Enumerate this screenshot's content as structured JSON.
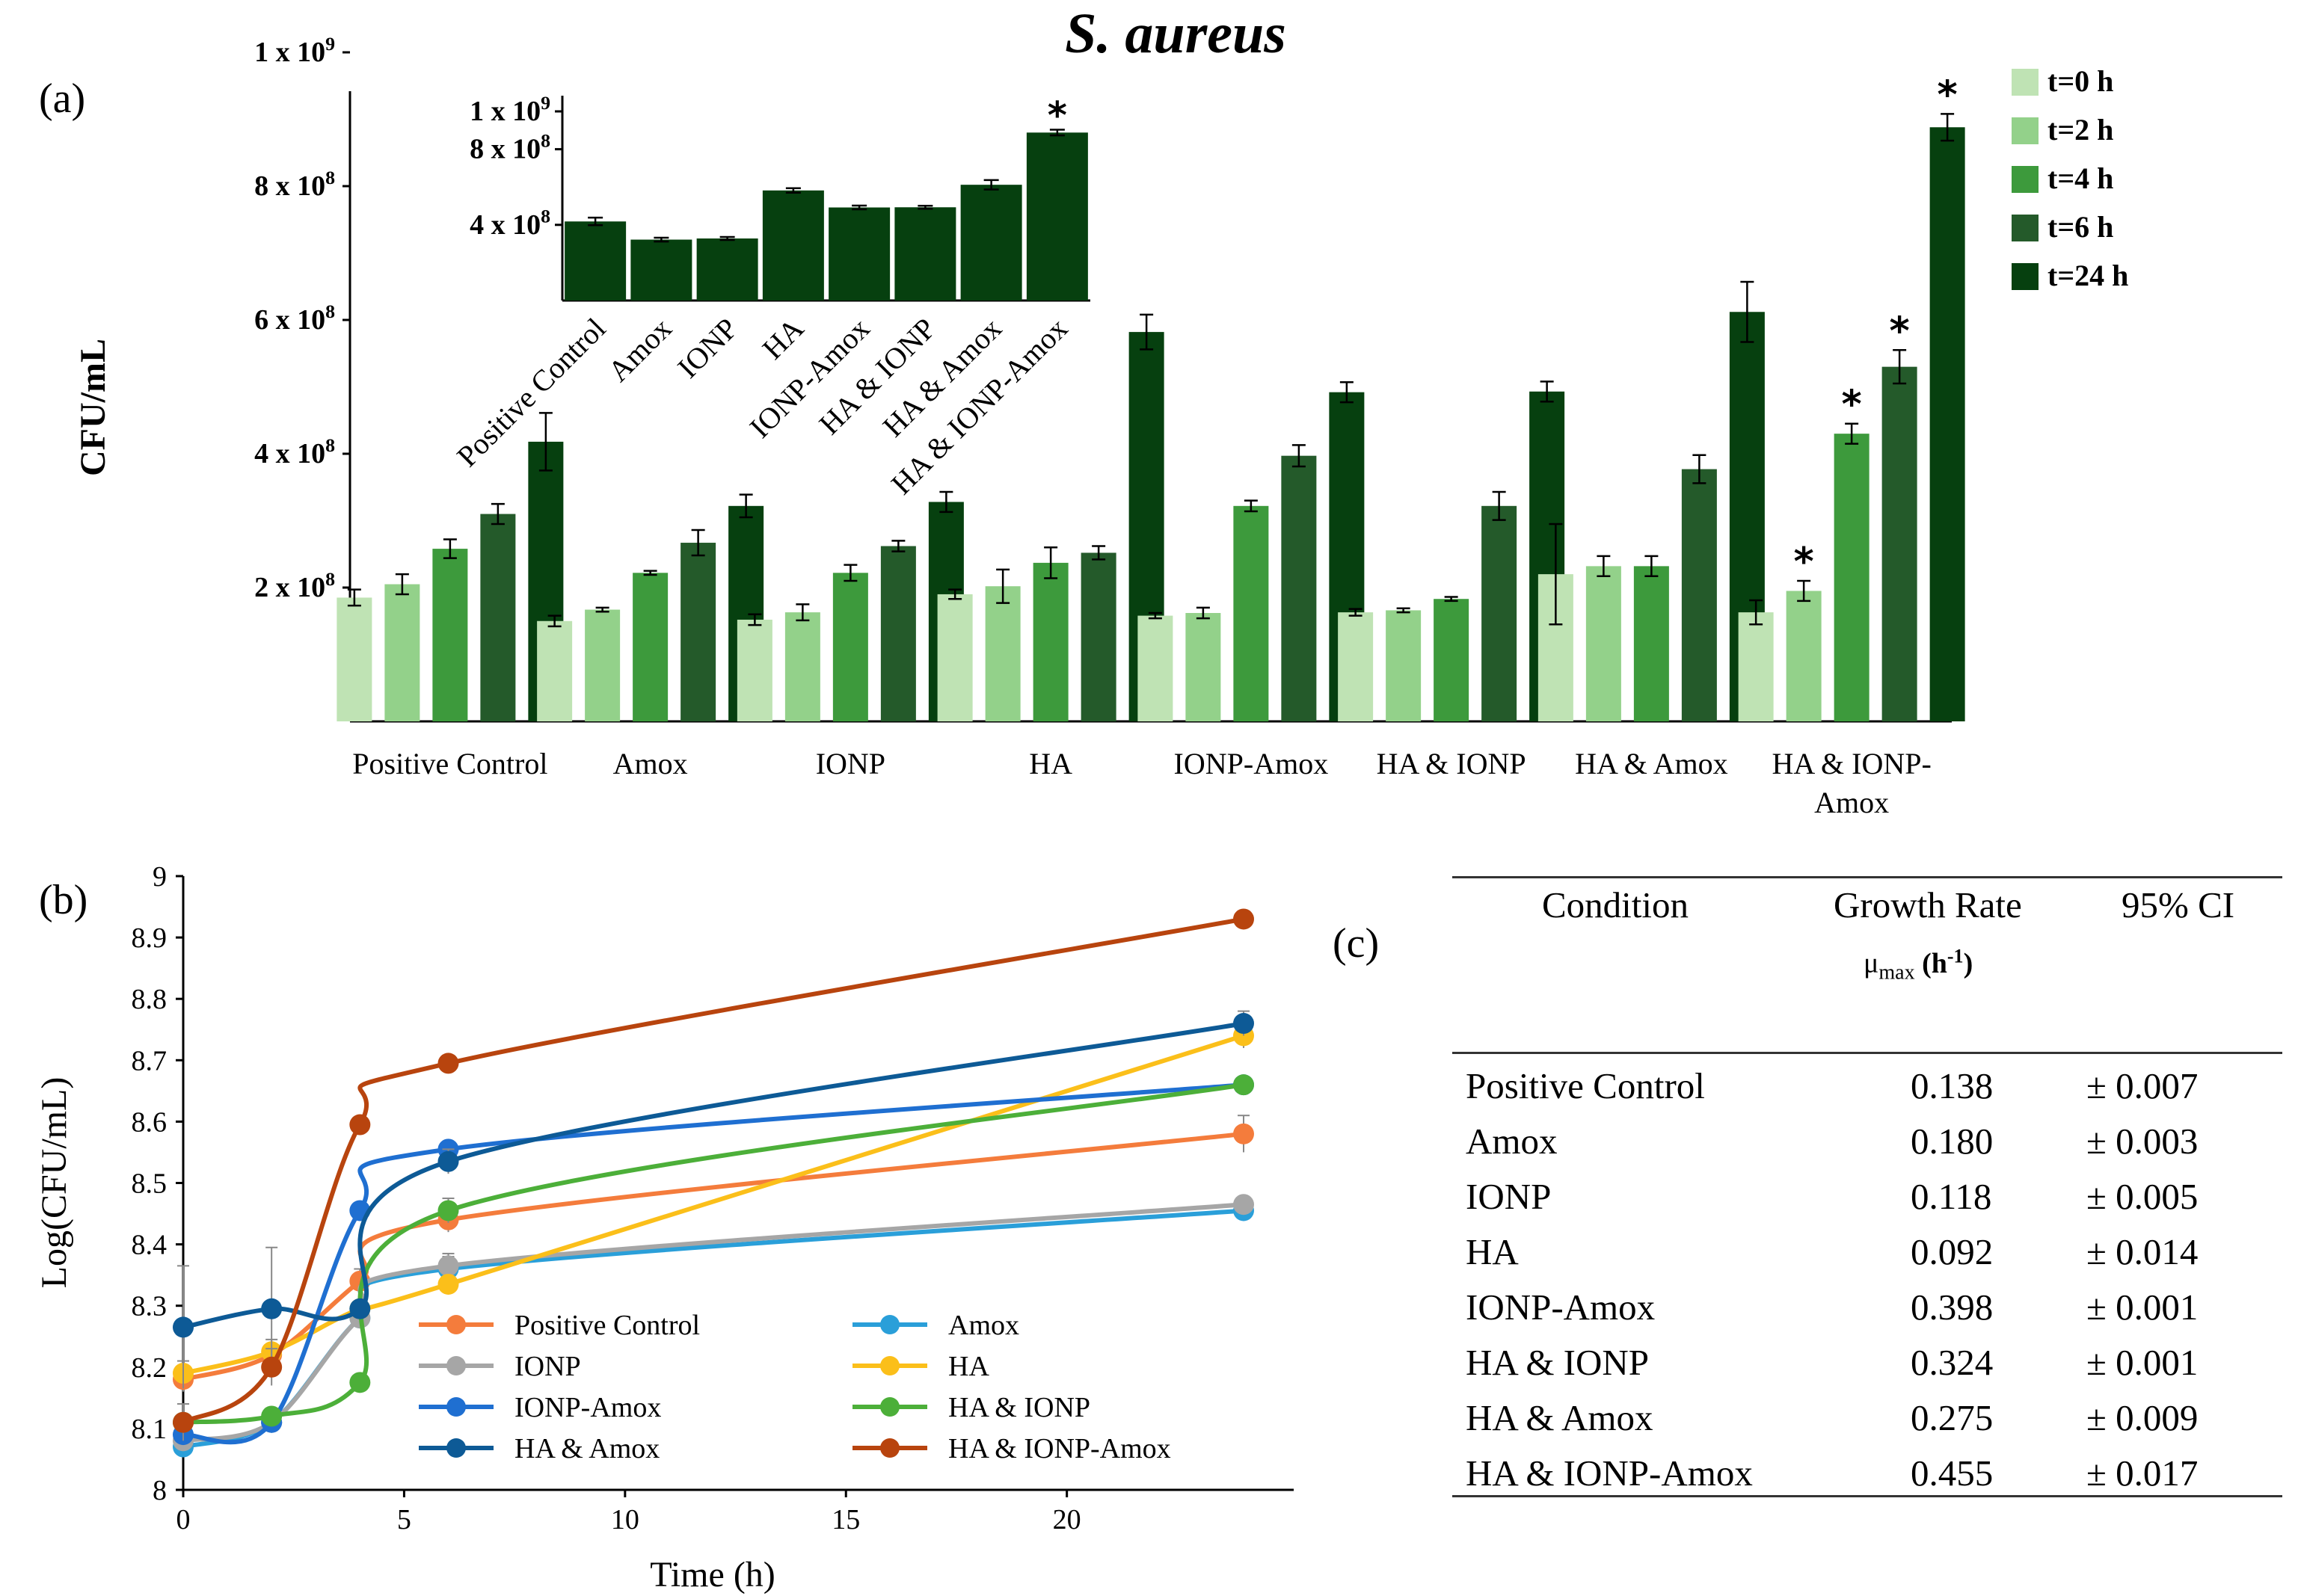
{
  "figure_title": "S. aureus",
  "panel_labels": {
    "a": "(a)",
    "b": "(b)",
    "c": "(c)"
  },
  "colors": {
    "t0": "#bfe3b4",
    "t2": "#93d18a",
    "t4": "#3d9a3c",
    "t6": "#245a2a",
    "t24": "#06400f",
    "inset": "#06400f",
    "series": {
      "Positive Control": "#f47c3c",
      "Amox": "#2a9fd9",
      "IONP": "#a6a6a6",
      "HA": "#fbbf1a",
      "IONP-Amox": "#1f6fd1",
      "HA & IONP": "#4caf39",
      "HA & Amox": "#0d5a96",
      "HA & IONP-Amox": "#b8440e"
    }
  },
  "chart_data": [
    {
      "type": "bar",
      "title": "S. aureus",
      "ylabel": "CFU/mL",
      "xlabel": "",
      "ylim": [
        0,
        1000000000
      ],
      "yticks": [
        200000000,
        400000000,
        600000000,
        800000000,
        1000000000
      ],
      "ytick_labels": [
        {
          "base": "2 x 10",
          "exp": "8"
        },
        {
          "base": "4 x 10",
          "exp": "8"
        },
        {
          "base": "6 x 10",
          "exp": "8"
        },
        {
          "base": "8 x 10",
          "exp": "8"
        },
        {
          "base": "1 x 10",
          "exp": "9"
        }
      ],
      "categories": [
        "Positive Control",
        "Amox",
        "IONP",
        "HA",
        "IONP-Amox",
        "HA & IONP",
        "HA & Amox",
        "HA & IONP-Amox"
      ],
      "category_labels": [
        [
          "Positive Control"
        ],
        [
          "Amox"
        ],
        [
          "IONP"
        ],
        [
          "HA"
        ],
        [
          "IONP-Amox"
        ],
        [
          "HA & IONP"
        ],
        [
          "HA & Amox"
        ],
        [
          "HA & IONP-",
          "Amox"
        ]
      ],
      "legend_position": "top-right",
      "series": [
        {
          "name": "t=0 h",
          "color_key": "t0",
          "values": [
            185000000,
            150000000,
            152000000,
            190000000,
            158000000,
            163000000,
            220000000,
            163000000
          ],
          "errors": [
            12000000,
            8000000,
            8000000,
            7000000,
            4000000,
            5000000,
            75000000,
            18000000
          ],
          "stars": [
            false,
            false,
            false,
            false,
            false,
            false,
            false,
            false
          ]
        },
        {
          "name": "t=2 h",
          "color_key": "t2",
          "values": [
            205000000,
            167000000,
            163000000,
            202000000,
            162000000,
            166000000,
            232000000,
            195000000
          ],
          "errors": [
            15000000,
            3000000,
            12000000,
            25000000,
            8000000,
            3000000,
            15000000,
            15000000
          ],
          "stars": [
            false,
            false,
            false,
            false,
            false,
            false,
            false,
            true
          ]
        },
        {
          "name": "t=4 h",
          "color_key": "t4",
          "values": [
            258000000,
            222000000,
            222000000,
            237000000,
            322000000,
            183000000,
            232000000,
            430000000
          ],
          "errors": [
            14000000,
            3000000,
            12000000,
            23000000,
            8000000,
            3000000,
            15000000,
            15000000
          ],
          "stars": [
            false,
            false,
            false,
            false,
            false,
            false,
            false,
            true
          ]
        },
        {
          "name": "t=6 h",
          "color_key": "t6",
          "values": [
            310000000,
            267000000,
            262000000,
            252000000,
            397000000,
            322000000,
            377000000,
            530000000
          ],
          "errors": [
            15000000,
            19000000,
            8000000,
            10000000,
            16000000,
            21000000,
            21000000,
            25000000
          ],
          "stars": [
            false,
            false,
            false,
            false,
            false,
            false,
            false,
            true
          ]
        },
        {
          "name": "t=24 h",
          "color_key": "t24",
          "values": [
            418000000,
            322000000,
            328000000,
            582000000,
            492000000,
            493000000,
            612000000,
            888000000
          ],
          "errors": [
            43000000,
            17000000,
            15000000,
            26000000,
            15000000,
            15000000,
            45000000,
            20000000
          ],
          "stars": [
            false,
            false,
            false,
            false,
            false,
            false,
            false,
            true
          ]
        }
      ]
    },
    {
      "type": "bar",
      "title": "",
      "ylim": [
        0,
        1000000000
      ],
      "yticks": [
        400000000,
        800000000,
        1000000000
      ],
      "ytick_labels": [
        {
          "base": "4 x 10",
          "exp": "8"
        },
        {
          "base": "8 x 10",
          "exp": "8"
        },
        {
          "base": "1 x 10",
          "exp": "9"
        }
      ],
      "categories": [
        "Positive Control",
        "Amox",
        "IONP",
        "HA",
        "IONP-Amox",
        "HA & IONP",
        "HA & Amox",
        "HA & IONP-Amox"
      ],
      "values": [
        418000000,
        322000000,
        328000000,
        582000000,
        492000000,
        493000000,
        612000000,
        888000000
      ],
      "errors": [
        20000000,
        10000000,
        8000000,
        12000000,
        10000000,
        8000000,
        25000000,
        15000000
      ],
      "stars": [
        false,
        false,
        false,
        false,
        false,
        false,
        false,
        true
      ]
    },
    {
      "type": "line",
      "title": "",
      "xlabel": "Time (h)",
      "ylabel": "Log(CFU/mL)",
      "xlim": [
        0,
        24
      ],
      "ylim": [
        8,
        9
      ],
      "xticks": [
        0,
        5,
        10,
        15,
        20
      ],
      "yticks": [
        8,
        8.1,
        8.2,
        8.3,
        8.4,
        8.5,
        8.6,
        8.7,
        8.8,
        8.9,
        9
      ],
      "x": [
        0,
        2,
        4,
        6,
        24
      ],
      "legend_position": "bottom-center",
      "series": [
        {
          "name": "Positive Control",
          "values": [
            8.18,
            8.22,
            8.34,
            8.44,
            8.58
          ],
          "errors": [
            0.02,
            0.01,
            0.02,
            0.02,
            0.03
          ]
        },
        {
          "name": "Amox",
          "values": [
            8.07,
            8.11,
            8.28,
            8.36,
            8.455
          ],
          "errors": [
            0.01,
            0.01,
            0.01,
            0.02,
            0.01
          ]
        },
        {
          "name": "IONP",
          "values": [
            8.08,
            8.11,
            8.28,
            8.365,
            8.465
          ],
          "errors": [
            0.01,
            0.01,
            0.01,
            0.02,
            0.01
          ]
        },
        {
          "name": "HA",
          "values": [
            8.19,
            8.225,
            8.295,
            8.335,
            8.74
          ],
          "errors": [
            0.02,
            0.02,
            0.01,
            0.01,
            0.02
          ]
        },
        {
          "name": "IONP-Amox",
          "values": [
            8.09,
            8.11,
            8.455,
            8.555,
            8.66
          ],
          "errors": [
            0.01,
            0.01,
            0.01,
            0.01,
            0.01
          ]
        },
        {
          "name": "HA & IONP",
          "values": [
            8.11,
            8.12,
            8.175,
            8.455,
            8.66
          ],
          "errors": [
            0.01,
            0.01,
            0.01,
            0.02,
            0.01
          ]
        },
        {
          "name": "HA & Amox",
          "values": [
            8.265,
            8.295,
            8.295,
            8.535,
            8.76
          ],
          "errors": [
            0.1,
            0.1,
            0.01,
            0.02,
            0.02
          ]
        },
        {
          "name": "HA & IONP-Amox",
          "values": [
            8.11,
            8.2,
            8.595,
            8.695,
            8.93
          ],
          "errors": [
            0.03,
            0.03,
            0.01,
            0.01,
            0.01
          ]
        }
      ]
    },
    {
      "type": "table",
      "headers": {
        "condition": "Condition",
        "rate_line1": "Growth Rate",
        "rate_mu": "μ",
        "rate_sub": "max",
        "rate_unit_base": "(h",
        "rate_unit_exp": "-1",
        "rate_unit_close": ")",
        "ci": "95% CI"
      },
      "rows": [
        {
          "condition": "Positive Control",
          "rate": "0.138",
          "ci": "± 0.007"
        },
        {
          "condition": "Amox",
          "rate": "0.180",
          "ci": "± 0.003"
        },
        {
          "condition": "IONP",
          "rate": "0.118",
          "ci": "± 0.005"
        },
        {
          "condition": "HA",
          "rate": "0.092",
          "ci": "± 0.014"
        },
        {
          "condition": "IONP-Amox",
          "rate": "0.398",
          "ci": "± 0.001"
        },
        {
          "condition": "HA & IONP",
          "rate": "0.324",
          "ci": "± 0.001"
        },
        {
          "condition": "HA & Amox",
          "rate": "0.275",
          "ci": "± 0.009"
        },
        {
          "condition": "HA & IONP-Amox",
          "rate": "0.455",
          "ci": "± 0.017"
        }
      ]
    }
  ]
}
